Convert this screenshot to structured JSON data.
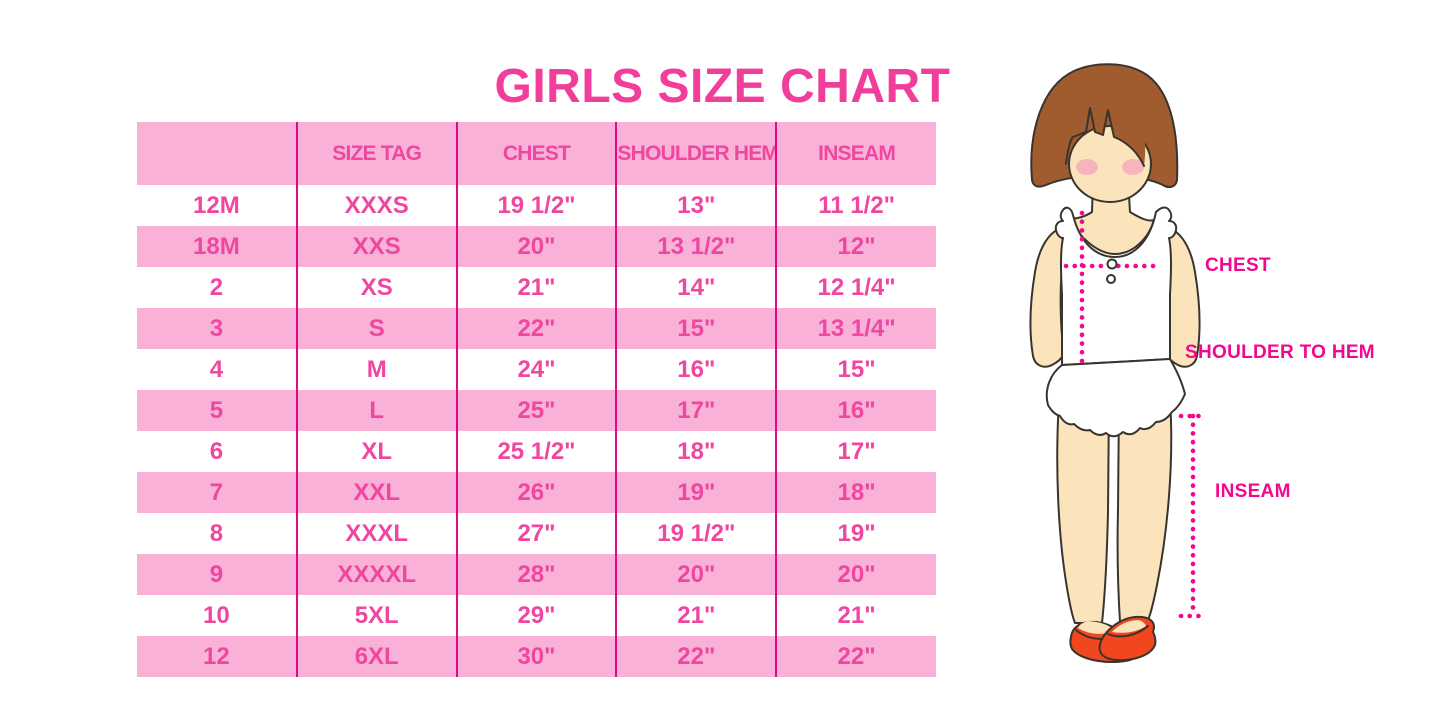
{
  "title": "GIRLS SIZE CHART",
  "table": {
    "headers": [
      "",
      "SIZE TAG",
      "CHEST",
      "SHOULDER HEM",
      "INSEAM"
    ],
    "rows": [
      [
        "12M",
        "XXXS",
        "19 1/2\"",
        "13\"",
        "11 1/2\""
      ],
      [
        "18M",
        "XXS",
        "20\"",
        "13 1/2\"",
        "12\""
      ],
      [
        "2",
        "XS",
        "21\"",
        "14\"",
        "12 1/4\""
      ],
      [
        "3",
        "S",
        "22\"",
        "15\"",
        "13 1/4\""
      ],
      [
        "4",
        "M",
        "24\"",
        "16\"",
        "15\""
      ],
      [
        "5",
        "L",
        "25\"",
        "17\"",
        "16\""
      ],
      [
        "6",
        "XL",
        "25 1/2\"",
        "18\"",
        "17\""
      ],
      [
        "7",
        "XXL",
        "26\"",
        "19\"",
        "18\""
      ],
      [
        "8",
        "XXXL",
        "27\"",
        "19 1/2\"",
        "19\""
      ],
      [
        "9",
        "XXXXL",
        "28\"",
        "20\"",
        "20\""
      ],
      [
        "10",
        "5XL",
        "29\"",
        "21\"",
        "21\""
      ],
      [
        "12",
        "6XL",
        "30\"",
        "22\"",
        "22\""
      ]
    ]
  },
  "diagram": {
    "chest_label": "CHEST",
    "shoulder_label": "SHOULDER TO HEM",
    "inseam_label": "INSEAM"
  },
  "colors": {
    "title_pink": "#F13E9B",
    "row_pink": "#F9B1D8",
    "cell_text_pink": "#EF47A0",
    "divider_magenta": "#E10789",
    "label_magenta": "#F20790",
    "hair_brown": "#A05C2E",
    "skin": "#FBE4BB",
    "blush": "#F5A9BE",
    "shoe_red": "#F2461F",
    "outline": "#3A342E"
  }
}
